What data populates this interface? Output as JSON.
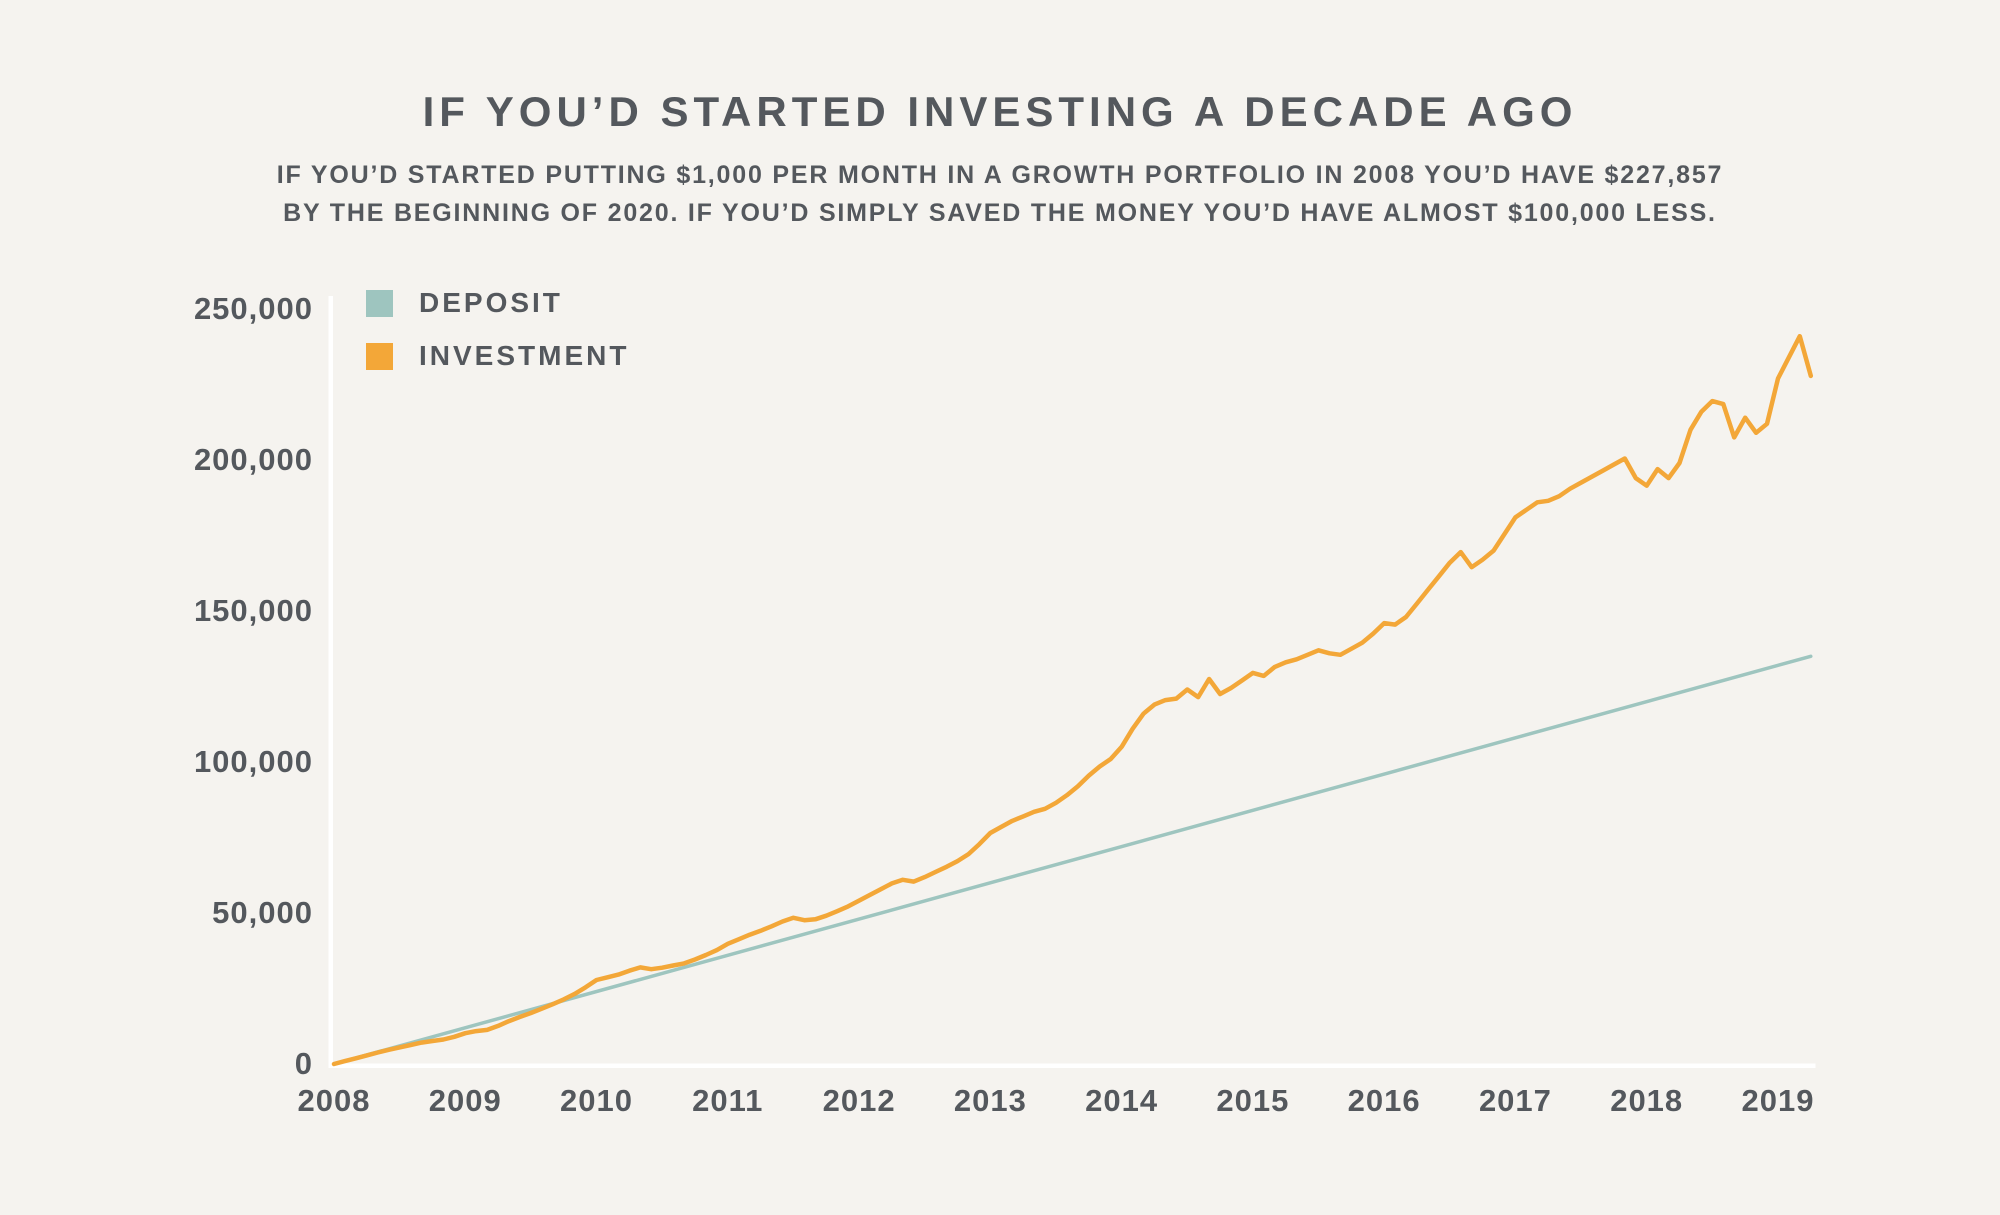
{
  "header": {
    "title": "IF YOU’D STARTED INVESTING A DECADE AGO",
    "subtitle_line1": "IF YOU’D STARTED PUTTING $1,000 PER MONTH IN A GROWTH PORTFOLIO IN 2008 YOU’D HAVE $227,857",
    "subtitle_line2": "BY THE BEGINNING OF 2020. IF YOU’D SIMPLY SAVED THE MONEY YOU’D HAVE ALMOST $100,000 LESS."
  },
  "legend": {
    "items": [
      {
        "label": "DEPOSIT",
        "color": "#9ec5bf"
      },
      {
        "label": "INVESTMENT",
        "color": "#f3a738"
      }
    ]
  },
  "colors": {
    "background": "#f5f3ef",
    "text": "#54585d",
    "axis": "#ffffff",
    "deposit_line": "#9ec5bf",
    "investment_line": "#f3a738"
  },
  "chart_data": {
    "type": "line",
    "title": "IF YOU’D STARTED INVESTING A DECADE AGO",
    "xlabel": "",
    "ylabel": "",
    "xlim": [
      2008,
      2019.3
    ],
    "ylim": [
      0,
      250000
    ],
    "grid": false,
    "legend_position": "top-left-inside",
    "x_ticks": [
      2008,
      2009,
      2010,
      2011,
      2012,
      2013,
      2014,
      2015,
      2016,
      2017,
      2018,
      2019
    ],
    "y_ticks": [
      0,
      50000,
      100000,
      150000,
      200000,
      250000
    ],
    "y_tick_labels": [
      "0",
      "50,000",
      "100,000",
      "150,000",
      "200,000",
      "250,000"
    ],
    "final_investment_value": 227857,
    "monthly_contribution": 1000,
    "series": [
      {
        "name": "DEPOSIT",
        "color": "#9ec5bf",
        "shape": "linear",
        "x": [
          2008,
          2019.25
        ],
        "values": [
          0,
          135000
        ]
      },
      {
        "name": "INVESTMENT",
        "color": "#f3a738",
        "x_start": 2008.0,
        "x_step": 0.0833333,
        "values": [
          0,
          950,
          1900,
          2850,
          3800,
          4700,
          5500,
          6300,
          7100,
          7600,
          8100,
          9000,
          10200,
          10900,
          11300,
          12600,
          14200,
          15600,
          16900,
          18300,
          19800,
          21400,
          23200,
          25400,
          27800,
          28700,
          29600,
          30900,
          32000,
          31400,
          31900,
          32600,
          33300,
          34600,
          36100,
          37700,
          39800,
          41300,
          42800,
          44100,
          45600,
          47200,
          48400,
          47600,
          47900,
          49100,
          50600,
          52200,
          54100,
          56000,
          57900,
          59800,
          61000,
          60400,
          61900,
          63600,
          65300,
          67200,
          69500,
          72800,
          76500,
          78500,
          80500,
          82000,
          83500,
          84500,
          86500,
          89000,
          92000,
          95500,
          98500,
          101000,
          105000,
          111000,
          116000,
          119000,
          120500,
          121000,
          124000,
          121500,
          127500,
          122500,
          124500,
          127000,
          129500,
          128500,
          131500,
          133000,
          134000,
          135500,
          137000,
          136000,
          135500,
          137500,
          139500,
          142500,
          146000,
          145500,
          148000,
          152500,
          157000,
          161500,
          166000,
          169500,
          164500,
          167000,
          170000,
          175500,
          181000,
          183500,
          186000,
          186500,
          188000,
          190500,
          192500,
          194500,
          196500,
          198500,
          200500,
          194000,
          191500,
          197000,
          194000,
          199000,
          210000,
          216000,
          219500,
          218500,
          207500,
          214000,
          209000,
          212000,
          227000,
          234000,
          241000,
          227857
        ]
      }
    ]
  }
}
